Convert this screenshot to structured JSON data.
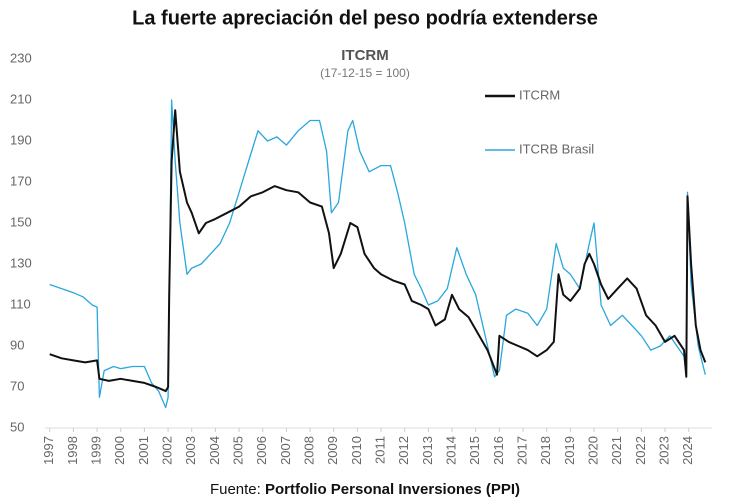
{
  "chart_data": {
    "type": "line",
    "title": "La fuerte apreciación del peso podría extenderse",
    "subtitle": "ITCRM",
    "note": "(17-12-15 = 100)",
    "source": {
      "label": "Fuente:",
      "text": "Portfolio Personal Inversiones (PPI)"
    },
    "xlim": [
      1996.8,
      2024.9
    ],
    "xticks": [
      1997,
      1998,
      1999,
      2000,
      2001,
      2002,
      2003,
      2004,
      2005,
      2006,
      2007,
      2008,
      2009,
      2010,
      2011,
      2012,
      2013,
      2014,
      2015,
      2016,
      2017,
      2018,
      2019,
      2020,
      2021,
      2022,
      2023,
      2024
    ],
    "ylim": [
      50,
      230
    ],
    "yticks": [
      50,
      70,
      90,
      110,
      130,
      150,
      170,
      190,
      210,
      230
    ],
    "series": [
      {
        "name": "ITCRM",
        "color": "#111111",
        "x": [
          1997.0,
          1997.5,
          1998.0,
          1998.5,
          1999.0,
          1999.1,
          1999.5,
          2000.0,
          2000.5,
          2001.0,
          2001.5,
          2001.9,
          2002.0,
          2002.05,
          2002.15,
          2002.3,
          2002.5,
          2002.8,
          2003.0,
          2003.3,
          2003.6,
          2004.0,
          2004.5,
          2005.0,
          2005.5,
          2006.0,
          2006.5,
          2007.0,
          2007.5,
          2008.0,
          2008.5,
          2008.8,
          2009.0,
          2009.3,
          2009.7,
          2010.0,
          2010.3,
          2010.7,
          2011.0,
          2011.5,
          2012.0,
          2012.3,
          2012.7,
          2013.0,
          2013.3,
          2013.7,
          2014.0,
          2014.3,
          2014.7,
          2015.0,
          2015.5,
          2015.9,
          2016.0,
          2016.4,
          2016.8,
          2017.2,
          2017.6,
          2018.0,
          2018.3,
          2018.5,
          2018.7,
          2019.0,
          2019.4,
          2019.6,
          2019.8,
          2020.0,
          2020.3,
          2020.6,
          2021.0,
          2021.4,
          2021.8,
          2022.2,
          2022.6,
          2023.0,
          2023.4,
          2023.8,
          2023.9,
          2023.95,
          2024.1,
          2024.3,
          2024.5,
          2024.7
        ],
        "values": [
          86,
          84,
          83,
          82,
          83,
          74,
          73,
          74,
          73,
          72,
          70,
          68,
          70,
          115,
          180,
          205,
          175,
          160,
          155,
          145,
          150,
          152,
          155,
          158,
          163,
          165,
          168,
          166,
          165,
          160,
          158,
          145,
          128,
          135,
          150,
          148,
          135,
          128,
          125,
          122,
          120,
          112,
          110,
          108,
          100,
          103,
          115,
          108,
          104,
          98,
          88,
          76,
          95,
          92,
          90,
          88,
          85,
          88,
          92,
          125,
          115,
          112,
          118,
          130,
          135,
          130,
          120,
          113,
          118,
          123,
          118,
          105,
          100,
          92,
          95,
          88,
          75,
          163,
          130,
          100,
          88,
          82
        ]
      },
      {
        "name": "ITCRB Brasil",
        "color": "#2aa7de",
        "x": [
          1997.0,
          1997.5,
          1998.0,
          1998.4,
          1998.8,
          1999.0,
          1999.1,
          1999.3,
          1999.7,
          2000.0,
          2000.5,
          2001.0,
          2001.3,
          2001.6,
          2001.9,
          2002.0,
          2002.08,
          2002.15,
          2002.3,
          2002.5,
          2002.8,
          2003.0,
          2003.4,
          2003.8,
          2004.2,
          2004.6,
          2005.0,
          2005.4,
          2005.8,
          2006.2,
          2006.6,
          2007.0,
          2007.5,
          2008.0,
          2008.4,
          2008.7,
          2008.9,
          2009.2,
          2009.6,
          2009.8,
          2010.1,
          2010.5,
          2011.0,
          2011.4,
          2011.7,
          2012.0,
          2012.4,
          2012.7,
          2013.0,
          2013.4,
          2013.8,
          2014.2,
          2014.6,
          2015.0,
          2015.4,
          2015.8,
          2016.0,
          2016.3,
          2016.7,
          2017.2,
          2017.6,
          2018.0,
          2018.4,
          2018.7,
          2019.0,
          2019.4,
          2019.8,
          2020.0,
          2020.3,
          2020.7,
          2021.2,
          2021.6,
          2022.0,
          2022.4,
          2022.8,
          2023.2,
          2023.8,
          2023.9,
          2023.95,
          2024.1,
          2024.4,
          2024.7
        ],
        "values": [
          120,
          118,
          116,
          114,
          110,
          109,
          65,
          78,
          80,
          79,
          80,
          80,
          72,
          68,
          60,
          65,
          140,
          210,
          180,
          150,
          125,
          128,
          130,
          135,
          140,
          150,
          165,
          180,
          195,
          190,
          192,
          188,
          195,
          200,
          200,
          185,
          155,
          160,
          195,
          200,
          185,
          175,
          178,
          178,
          165,
          150,
          125,
          118,
          110,
          112,
          118,
          138,
          125,
          115,
          95,
          75,
          78,
          105,
          108,
          106,
          100,
          108,
          140,
          128,
          125,
          118,
          140,
          150,
          110,
          100,
          105,
          100,
          95,
          88,
          90,
          95,
          85,
          77,
          165,
          120,
          90,
          76
        ]
      }
    ]
  }
}
